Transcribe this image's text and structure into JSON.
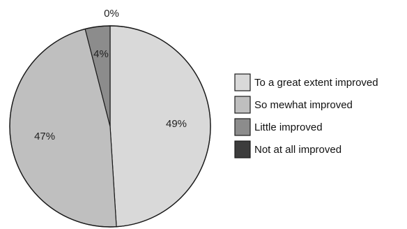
{
  "chart_data": {
    "type": "pie",
    "title": "",
    "start_angle_deg": 0,
    "direction": "clockwise",
    "legend_position": "right",
    "slices": [
      {
        "label": "To a great extent improved",
        "value": 49,
        "display": "49%",
        "color": "#d9d9d9"
      },
      {
        "label": "So mewhat improved",
        "value": 47,
        "display": "47%",
        "color": "#bfbfbf"
      },
      {
        "label": "Little improved",
        "value": 4,
        "display": "4%",
        "color": "#8c8c8c"
      },
      {
        "label": "Not at all improved",
        "value": 0,
        "display": "0%",
        "color": "#3c3c3c"
      }
    ]
  }
}
